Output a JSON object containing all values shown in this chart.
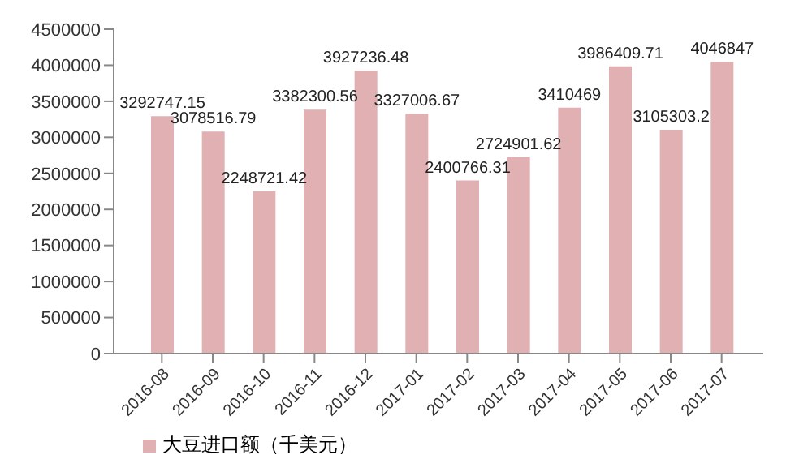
{
  "chart_data": {
    "type": "bar",
    "categories": [
      "2016-08",
      "2016-09",
      "2016-10",
      "2016-11",
      "2016-12",
      "2017-01",
      "2017-02",
      "2017-03",
      "2017-04",
      "2017-05",
      "2017-06",
      "2017-07"
    ],
    "series": [
      {
        "name": "大豆进口额（千美元）",
        "color": "#e0b0b2",
        "values": [
          3292747.15,
          3078516.79,
          2248721.42,
          3382300.56,
          3927236.48,
          3327006.67,
          2400766.31,
          2724901.62,
          3410469,
          3986409.71,
          3105303.2,
          4046847
        ]
      }
    ],
    "ylim": [
      0,
      4500000
    ],
    "yticks": [
      0,
      500000,
      1000000,
      1500000,
      2000000,
      2500000,
      3000000,
      3500000,
      4000000,
      4500000
    ],
    "grid": false,
    "legend": "bottom",
    "data_labels": true
  }
}
